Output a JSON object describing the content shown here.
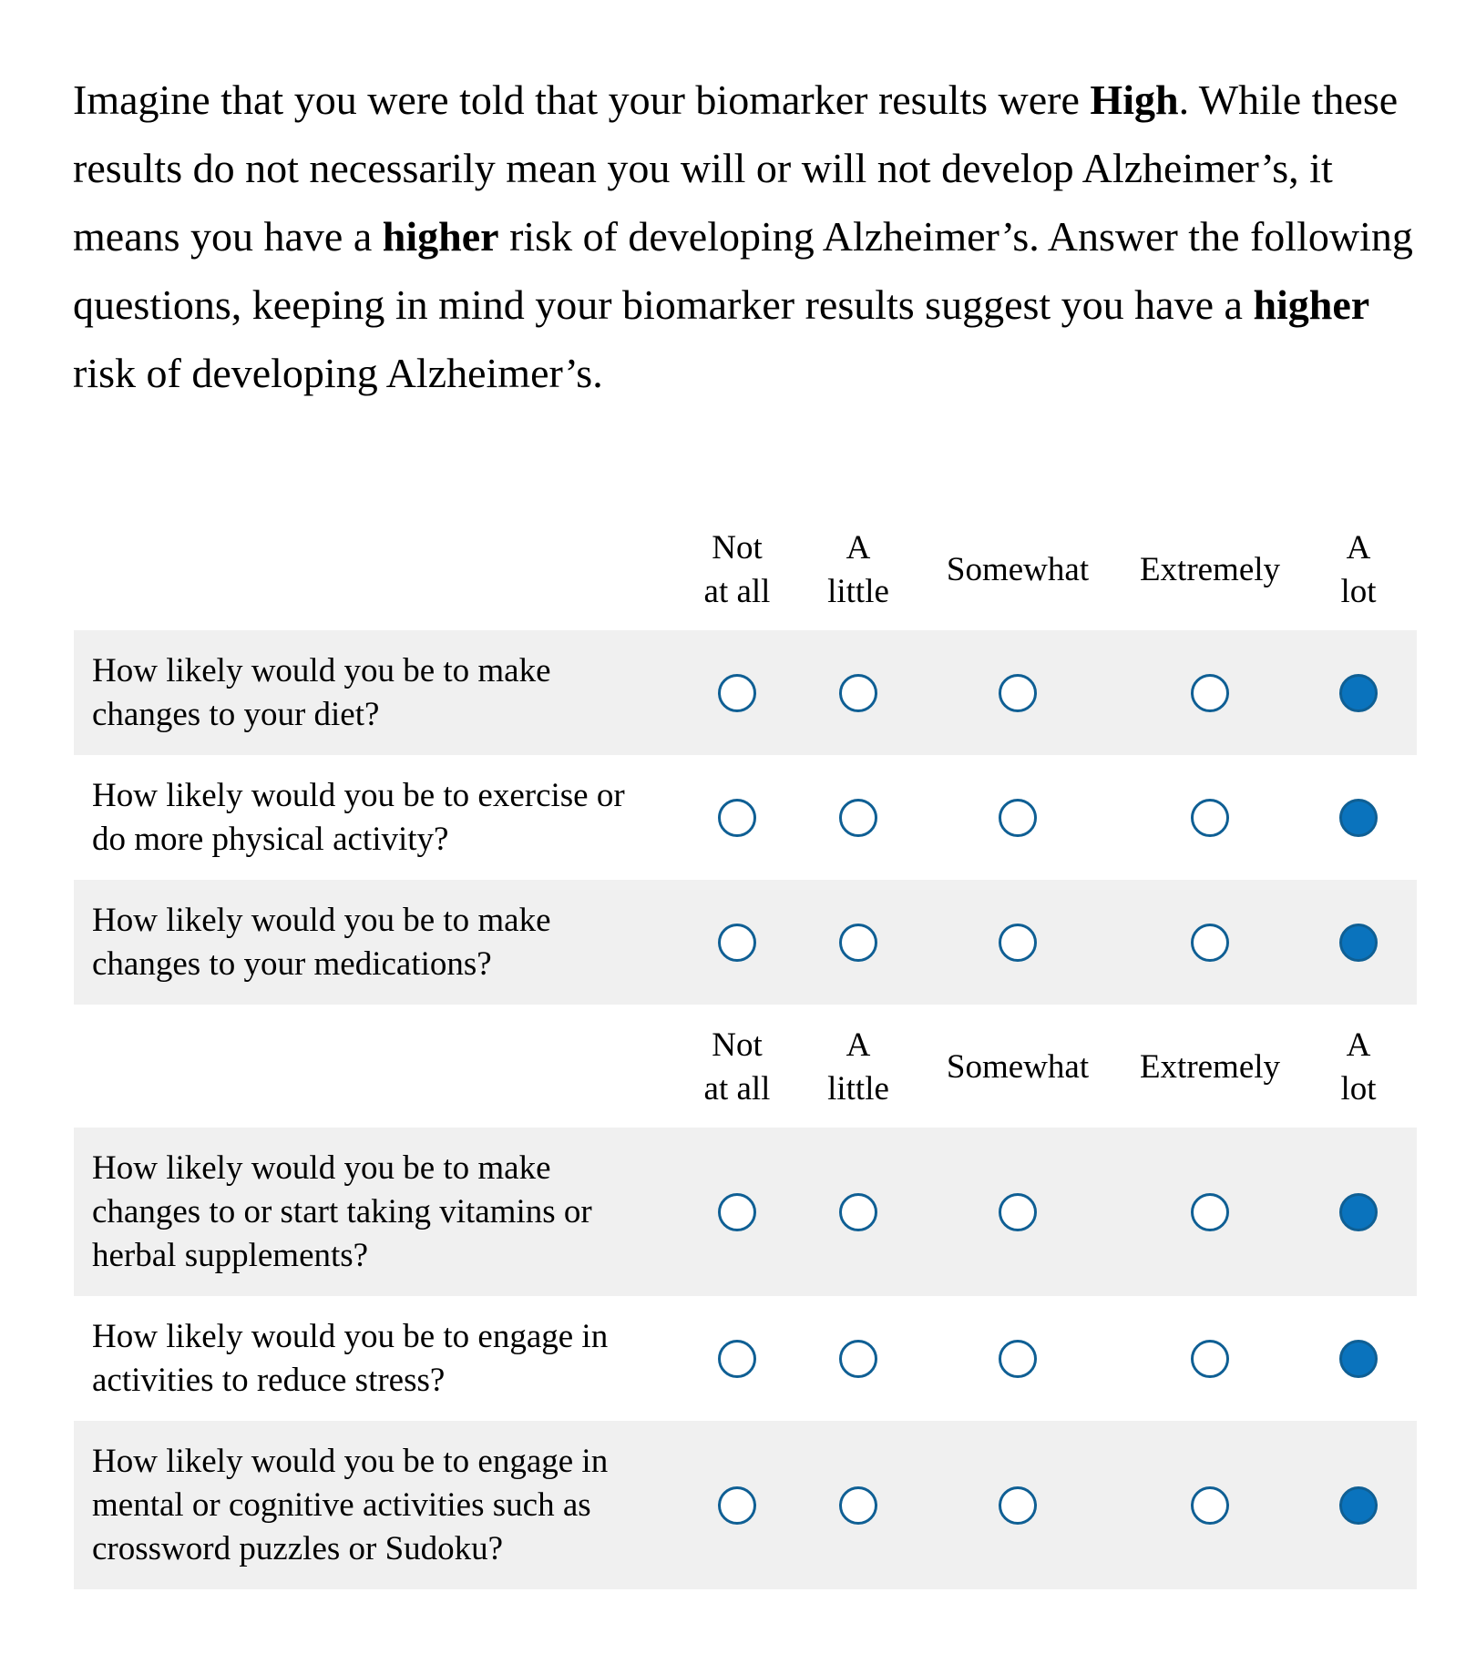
{
  "intro": {
    "p1": "Imagine that you were told that your biomarker results were ",
    "b1": "High",
    "p2": ". While these results do not necessarily mean you will or will not develop Alzheimer’s, it means you have a ",
    "b2": "higher",
    "p3": " risk of developing Alzheimer’s. Answer the following questions, keeping in mind your biomarker results suggest you have a ",
    "b3": "higher",
    "p4": " risk of developing Alzheimer’s."
  },
  "scale": {
    "labels": [
      "Not\nat all",
      "A\nlittle",
      "Somewhat",
      "Extremely",
      "A\nlot"
    ]
  },
  "questions": [
    {
      "text": "How likely would you be to make changes to your diet?",
      "selected": "A lot"
    },
    {
      "text": "How likely would you be to exercise or do more physical activity?",
      "selected": "A lot"
    },
    {
      "text": "How likely would you be to make changes to your medications?",
      "selected": "A lot"
    },
    {
      "text": "How likely would you be to make changes to or start taking vitamins or herbal supplements?",
      "selected": "A lot"
    },
    {
      "text": "How likely would you be to engage in activities to reduce stress?",
      "selected": "A lot"
    },
    {
      "text": "How likely would you be to engage in mental or cognitive activities such as crossword puzzles or Sudoku?",
      "selected": "A lot"
    }
  ],
  "colors": {
    "radio_border": "#0f5f94",
    "radio_selected_fill": "#0a73bd",
    "row_shade": "#f0f0f0"
  }
}
